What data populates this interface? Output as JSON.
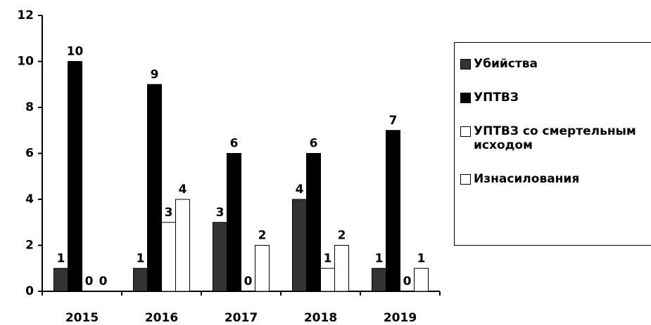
{
  "chart_data": {
    "type": "bar",
    "categories": [
      "2015",
      "2016",
      "2017",
      "2018",
      "2019"
    ],
    "series": [
      {
        "name": "Убийства",
        "color": "#333333",
        "values": [
          1,
          1,
          3,
          4,
          1
        ]
      },
      {
        "name": "УПТВЗ",
        "color": "#000000",
        "values": [
          10,
          9,
          6,
          6,
          7
        ]
      },
      {
        "name": "УПТВЗ со смертельным исходом",
        "color": "#ffffff",
        "values": [
          0,
          3,
          0,
          1,
          0
        ]
      },
      {
        "name": "Изнасилования",
        "color": "#ffffff",
        "values": [
          0,
          4,
          2,
          2,
          1
        ]
      }
    ],
    "ylim": [
      0,
      12
    ],
    "yticks": [
      0,
      2,
      4,
      6,
      8,
      10,
      12
    ],
    "legend": "right"
  }
}
